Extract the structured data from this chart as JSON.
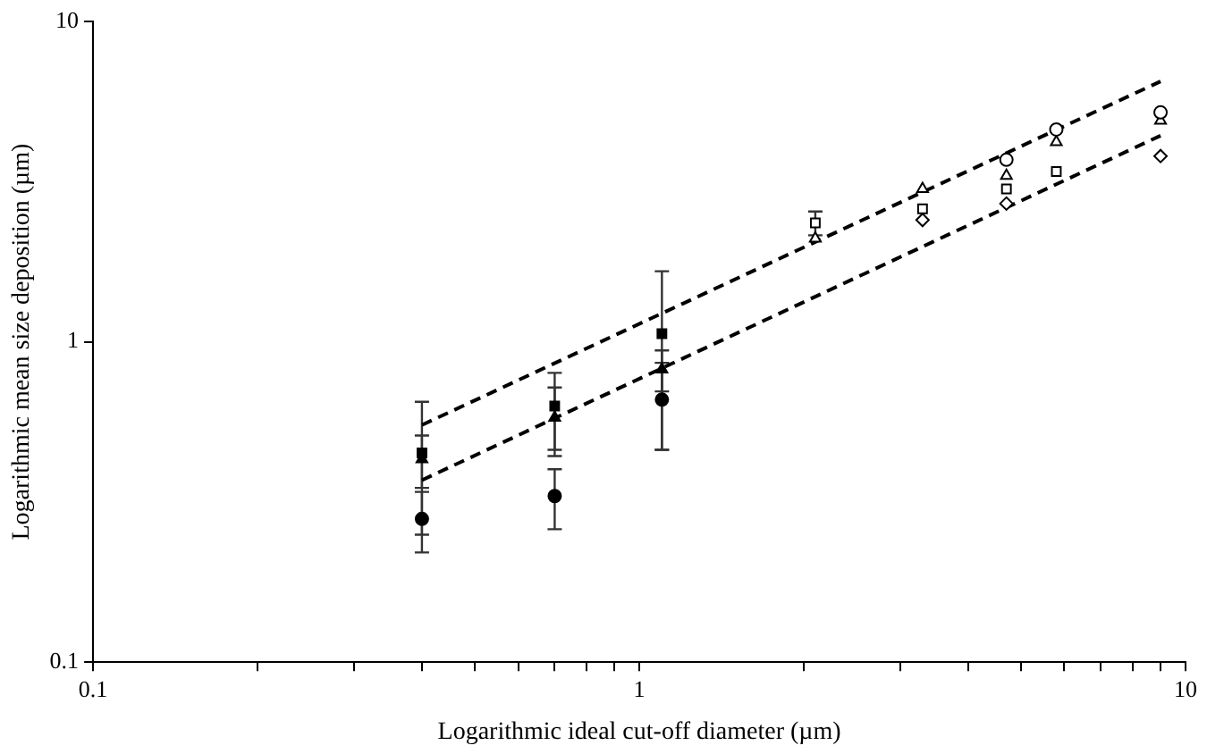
{
  "chart_data": {
    "type": "scatter",
    "xlabel": "Logarithmic ideal cut-off diameter (µm)",
    "ylabel": "Logarithmic mean size deposition (µm)",
    "log": "xy",
    "grid": false,
    "legend": false,
    "xlim": [
      0.1,
      10
    ],
    "ylim": [
      0.1,
      10
    ],
    "xticks": [
      0.1,
      {
        "value": 0.2,
        "label": null
      },
      {
        "value": 0.3,
        "label": null
      },
      {
        "value": 0.4,
        "label": null
      },
      {
        "value": 0.5,
        "label": null
      },
      {
        "value": 0.6,
        "label": null
      },
      {
        "value": 0.7,
        "label": null
      },
      {
        "value": 0.8,
        "label": null
      },
      {
        "value": 0.9,
        "label": null
      },
      1,
      {
        "value": 2,
        "label": null
      },
      {
        "value": 3,
        "label": null
      },
      {
        "value": 4,
        "label": null
      },
      {
        "value": 5,
        "label": null
      },
      {
        "value": 6,
        "label": null
      },
      {
        "value": 7,
        "label": null
      },
      {
        "value": 8,
        "label": null
      },
      {
        "value": 9,
        "label": null
      },
      10
    ],
    "yticks": [
      0.1,
      1,
      10
    ],
    "series": [
      {
        "type": "scatter",
        "marker": "square",
        "color": "#000000",
        "x": [
          0.4,
          0.7,
          1.1
        ],
        "values": [
          0.45,
          0.63,
          1.06
        ],
        "errors": [
          0.2,
          0.17,
          0.6
        ]
      },
      {
        "type": "scatter",
        "marker": "triangle",
        "color": "#000000",
        "x": [
          0.4,
          0.7,
          1.1
        ],
        "values": [
          0.43,
          0.58,
          0.82
        ],
        "errors": [
          0.08,
          0.14,
          0.12
        ]
      },
      {
        "type": "scatter",
        "marker": "circle",
        "color": "#000000",
        "x": [
          0.4,
          0.7,
          1.1
        ],
        "values": [
          0.28,
          0.33,
          0.66
        ],
        "errors": [
          0.06,
          0.07,
          0.2
        ]
      },
      {
        "type": "scatter",
        "marker": "circle",
        "color": "#ffffff",
        "x": [
          4.7,
          5.8,
          9
        ],
        "values": [
          3.7,
          4.6,
          5.2
        ]
      },
      {
        "type": "scatter",
        "marker": "triangle",
        "color": "#ffffff",
        "x": [
          2.1,
          3.3,
          4.7,
          5.8,
          9
        ],
        "values": [
          2.1,
          3.0,
          3.3,
          4.2,
          4.9
        ]
      },
      {
        "type": "scatter",
        "marker": "square",
        "color": "#ffffff",
        "x": [
          2.1,
          3.3,
          4.7,
          5.8
        ],
        "values": [
          2.35,
          2.6,
          3.0,
          3.4
        ],
        "errors": [
          0.2,
          null,
          null,
          null
        ]
      },
      {
        "type": "scatter",
        "marker": "diamond",
        "color": "#ffffff",
        "x": [
          3.3,
          4.7,
          9
        ],
        "values": [
          2.4,
          2.7,
          3.8
        ]
      },
      {
        "type": "line",
        "marker": "none",
        "line_style": "dashed",
        "color": "#000000",
        "x": [
          0.4,
          9
        ],
        "values": [
          0.55,
          6.5
        ]
      },
      {
        "type": "line",
        "marker": "none",
        "line_style": "dashed",
        "color": "#000000",
        "x": [
          0.4,
          9
        ],
        "values": [
          0.37,
          4.4
        ]
      }
    ]
  }
}
